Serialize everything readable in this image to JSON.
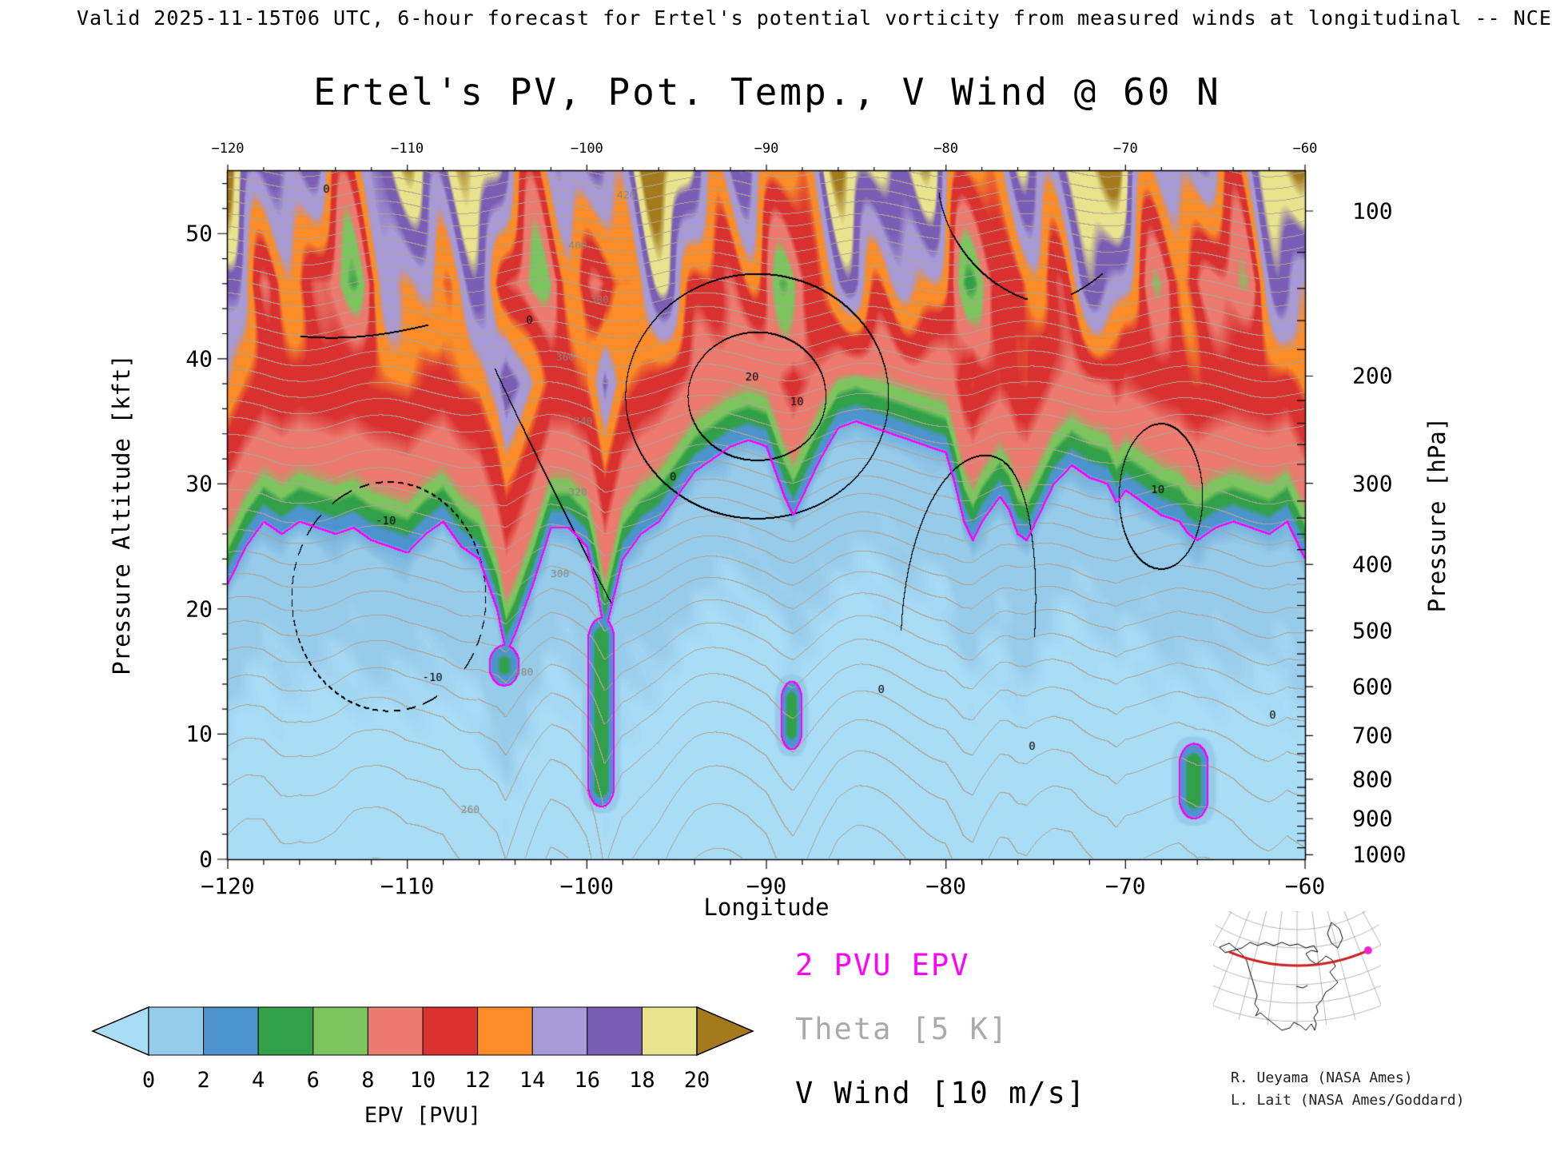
{
  "header": {
    "valid_line": "Valid 2025-11-15T06 UTC, 6-hour forecast for Ertel's potential vorticity from measured winds at longitudinal -- NCE"
  },
  "credits": {
    "line1": "R. Ueyama (NASA Ames)",
    "line2": "L. Lait (NASA Ames/Goddard)"
  },
  "chart_data": {
    "type": "heatmap",
    "title": "Ertel's PV, Pot. Temp., V Wind @ 60 N",
    "xlabel": "Longitude",
    "ylabel_left": "Pressure Altitude [kft]",
    "ylabel_right": "Pressure [hPa]",
    "xlim": [
      -120,
      -60
    ],
    "ylim_kft": [
      0,
      55
    ],
    "x_ticks": {
      "values": [
        -120,
        -110,
        -100,
        -90,
        -80,
        -70,
        -60
      ],
      "labels": [
        "−120",
        "−110",
        "−100",
        "−90",
        "−80",
        "−70",
        "−60"
      ]
    },
    "y_ticks_kft": {
      "values": [
        0,
        10,
        20,
        30,
        40,
        50
      ],
      "labels": [
        "0",
        "10",
        "20",
        "30",
        "40",
        "50"
      ]
    },
    "pressure_ticks": {
      "values": [
        100,
        200,
        300,
        400,
        500,
        600,
        700,
        800,
        900,
        1000
      ],
      "labels": [
        "100",
        "200",
        "300",
        "400",
        "500",
        "600",
        "700",
        "800",
        "900",
        "1000"
      ]
    },
    "colorbar": {
      "label": "EPV [PVU]",
      "levels": [
        0,
        2,
        4,
        6,
        8,
        10,
        12,
        14,
        16,
        18,
        20
      ],
      "tick_labels": [
        "0",
        "2",
        "4",
        "6",
        "8",
        "10",
        "12",
        "14",
        "16",
        "18",
        "20"
      ],
      "colors": [
        "#97CBEA",
        "#4D94CE",
        "#31A048",
        "#7CC45E",
        "#EC7A6F",
        "#D93030",
        "#FB8C28",
        "#A79AD6",
        "#7A5EB5",
        "#E8E38C"
      ],
      "under": "#A9DCF5",
      "over": "#A37B1E"
    },
    "legend": [
      {
        "label": "2 PVU EPV",
        "color": "#FF00FF"
      },
      {
        "label": "Theta [5 K]",
        "color": "#AAAAAA"
      },
      {
        "label": "V Wind [10 m/s]",
        "color": "#000000"
      }
    ],
    "tropopause_2pvu": {
      "lon": [
        -120,
        -119,
        -118,
        -117,
        -116,
        -115,
        -114,
        -113,
        -112,
        -111,
        -110,
        -109,
        -108,
        -107,
        -106,
        -105,
        -104.5,
        -104,
        -103,
        -102,
        -101,
        -100,
        -99.5,
        -99,
        -98.5,
        -98,
        -97,
        -96,
        -95,
        -94,
        -93,
        -92,
        -91,
        -90,
        -89.5,
        -89,
        -88.5,
        -88,
        -87,
        -86,
        -85,
        -84,
        -83,
        -82,
        -81,
        -80,
        -79.5,
        -79,
        -78.5,
        -78,
        -77,
        -76.5,
        -76,
        -75.5,
        -75,
        -74,
        -73,
        -72,
        -71,
        -70.5,
        -70,
        -69,
        -68,
        -67,
        -66.5,
        -66,
        -65,
        -64,
        -63,
        -62,
        -61,
        -60
      ],
      "kft": [
        22,
        25,
        27,
        26,
        27,
        26.5,
        26,
        26.5,
        25.5,
        25,
        24.5,
        26,
        27,
        25,
        24,
        20,
        16.5,
        18,
        22,
        26.5,
        26.5,
        25,
        22,
        18,
        21,
        24,
        26,
        27,
        29,
        31,
        32,
        33,
        33.5,
        33,
        31,
        29,
        27.5,
        29,
        32,
        34.5,
        35,
        34.5,
        34,
        33.5,
        33,
        32.5,
        30,
        27,
        25.5,
        27,
        29,
        28,
        26,
        25.5,
        27,
        30,
        31.5,
        30.5,
        30,
        28.5,
        29.5,
        28.5,
        27.5,
        27,
        26,
        25.5,
        26.5,
        27,
        26.5,
        26,
        27,
        24
      ]
    },
    "intrusions": [
      {
        "lon": -99.2,
        "width": 0.7,
        "top": 20,
        "bottom": 3.5,
        "peak": 5.5
      },
      {
        "lon": -88.6,
        "width": 0.6,
        "top": 15,
        "bottom": 8,
        "peak": 5
      },
      {
        "lon": -66.2,
        "width": 0.8,
        "top": 10,
        "bottom": 2.5,
        "peak": 5.2
      },
      {
        "lon": -104.6,
        "width": 0.9,
        "top": 18,
        "bottom": 13,
        "peak": 4.5
      }
    ],
    "wind_cells": [
      {
        "lon": -90.5,
        "kft": 37,
        "sx": 7.5,
        "sz": 10,
        "amp": 26
      },
      {
        "lon": -68,
        "kft": 29,
        "sx": 4,
        "sz": 10,
        "amp": 14
      },
      {
        "lon": -111,
        "kft": 21,
        "sx": 6.5,
        "sz": 11,
        "amp": -20
      },
      {
        "lon": -78.8,
        "kft": 24,
        "sx": 2.2,
        "sz": 6,
        "amp": -10
      },
      {
        "lon": -113,
        "kft": 50,
        "sx": 4,
        "sz": 5,
        "amp": 8
      },
      {
        "lon": -75,
        "kft": 52,
        "sx": 3,
        "sz": 4,
        "amp": -8
      }
    ],
    "theta_profile": {
      "surface_K": 255,
      "lapse_K_per_kft": 1.12,
      "curvature": 0.0375,
      "contour_interval_K": 5,
      "labels": [
        {
          "value": 260,
          "lon": -106.5
        },
        {
          "value": 280,
          "lon": -103.5
        },
        {
          "value": 300,
          "lon": -101.5
        },
        {
          "value": 320,
          "lon": -100.5
        },
        {
          "value": 340,
          "lon": -100.2
        },
        {
          "value": 360,
          "lon": -101.2
        },
        {
          "value": 380,
          "lon": -99.3
        },
        {
          "value": 400,
          "lon": -100.5
        },
        {
          "value": 420,
          "lon": -97.8
        }
      ]
    },
    "contour_labels": [
      {
        "text": "0",
        "lon": -114.5,
        "kft": 53.5
      },
      {
        "text": "0",
        "lon": -103.2,
        "kft": 43
      },
      {
        "text": "-10",
        "lon": -111.2,
        "kft": 27
      },
      {
        "text": "-10",
        "lon": -108.6,
        "kft": 14.5
      },
      {
        "text": "0",
        "lon": -95.2,
        "kft": 30.5
      },
      {
        "text": "10",
        "lon": -88.3,
        "kft": 36.5
      },
      {
        "text": "20",
        "lon": -90.8,
        "kft": 38.5
      },
      {
        "text": "0",
        "lon": -83.6,
        "kft": 13.5
      },
      {
        "text": "0",
        "lon": -75.2,
        "kft": 9
      },
      {
        "text": "10",
        "lon": -68.2,
        "kft": 29.5
      },
      {
        "text": "0",
        "lon": -61.8,
        "kft": 11.5
      }
    ]
  }
}
